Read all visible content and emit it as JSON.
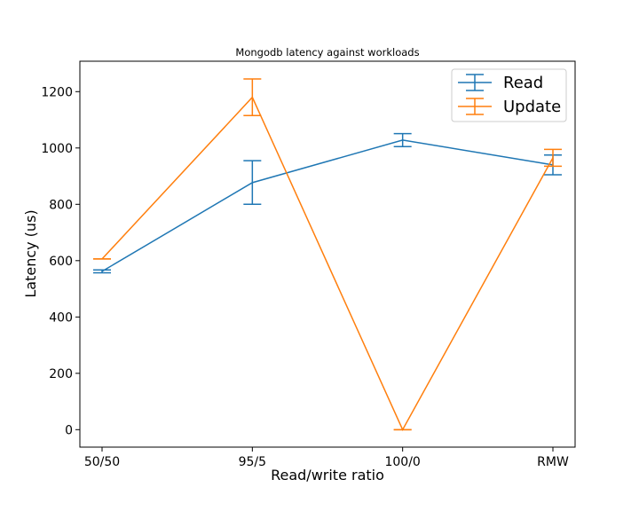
{
  "chart_data": {
    "type": "line",
    "title": "Mongodb latency against workloads",
    "xlabel": "Read/write ratio",
    "ylabel": "Latency (us)",
    "categories": [
      "50/50",
      "95/5",
      "100/0",
      "RMW"
    ],
    "yticks": [
      0,
      200,
      400,
      600,
      800,
      1000,
      1200
    ],
    "ylim": [
      -62,
      1308
    ],
    "grid": false,
    "legend_position": "upper right",
    "series": [
      {
        "name": "Read",
        "color": "#1f77b4",
        "values": [
          562,
          877,
          1028,
          940
        ],
        "err_low": [
          557,
          800,
          1005,
          905
        ],
        "err_high": [
          567,
          955,
          1051,
          975
        ]
      },
      {
        "name": "Update",
        "color": "#ff7f0e",
        "values": [
          606,
          1180,
          0,
          965
        ],
        "err_low": [
          606,
          1115,
          0,
          935
        ],
        "err_high": [
          606,
          1245,
          0,
          995
        ]
      }
    ]
  }
}
